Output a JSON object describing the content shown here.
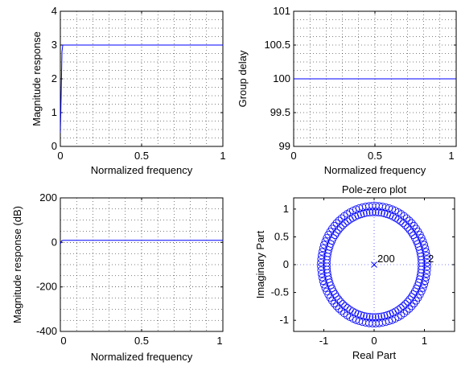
{
  "chart_data": [
    {
      "type": "line",
      "xlabel": "Normalized frequency",
      "ylabel": "Magnitude response",
      "xlim": [
        0,
        1
      ],
      "ylim": [
        0,
        4
      ],
      "xticks": [
        "0",
        "0.5",
        "1"
      ],
      "yticks": [
        "0",
        "1",
        "2",
        "3",
        "4"
      ],
      "grid": true,
      "series": [
        {
          "x": [
            0,
            0.005,
            0.01,
            0.015,
            1
          ],
          "y": [
            0.4,
            1.5,
            2.8,
            3.0,
            3.0
          ]
        }
      ]
    },
    {
      "type": "line",
      "xlabel": "Normalized frequency",
      "ylabel": "Group delay",
      "xlim": [
        0,
        1
      ],
      "ylim": [
        99,
        101
      ],
      "xticks": [
        "0",
        "0.5",
        "1"
      ],
      "yticks": [
        "99",
        "99.5",
        "100",
        "100.5",
        "101"
      ],
      "grid": true,
      "series": [
        {
          "x": [
            0,
            1
          ],
          "y": [
            100,
            100
          ]
        }
      ]
    },
    {
      "type": "line",
      "xlabel": "Normalized frequency",
      "ylabel": "Magnitude response (dB)",
      "xlim": [
        0,
        1
      ],
      "ylim": [
        -400,
        200
      ],
      "xticks": [
        "0",
        "0.5",
        "1"
      ],
      "yticks": [
        "-400",
        "-200",
        "0",
        "200"
      ],
      "grid": true,
      "series": [
        {
          "x": [
            0,
            0.005,
            0.01,
            0.02,
            1
          ],
          "y": [
            -8,
            3,
            8,
            9.5,
            9.5
          ]
        }
      ]
    },
    {
      "type": "scatter",
      "title": "Pole-zero plot",
      "xlabel": "Real Part",
      "ylabel": "Imaginary Part",
      "xlim": [
        -1.6,
        1.6
      ],
      "ylim": [
        -1.2,
        1.2
      ],
      "xticks": [
        "-1",
        "0",
        "1"
      ],
      "yticks": [
        "-1",
        "-0.5",
        "0",
        "0.5",
        "1"
      ],
      "grid": false,
      "pole_label": "200",
      "zero_label": "2",
      "zeros_inner_radius": 0.94,
      "zeros_outer_radius": 1.06,
      "zeros_count_per_ring": 100
    }
  ]
}
